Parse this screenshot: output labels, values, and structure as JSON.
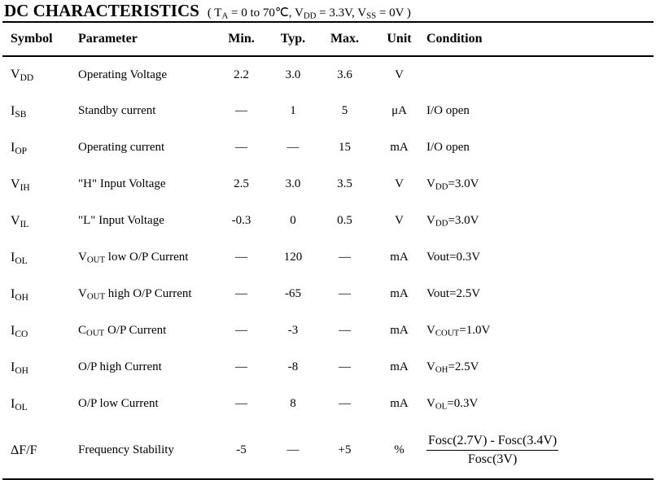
{
  "title": "DC CHARACTERISTICS",
  "condition": {
    "open": "( T",
    "ta_sub": "A",
    "ta_val": " = 0 to 70℃, V",
    "vdd_sub": "DD",
    "vdd_val": " = 3.3V, V",
    "vss_sub": "SS",
    "vss_val": " = 0V )"
  },
  "headers": [
    "Symbol",
    "Parameter",
    "Min.",
    "Typ.",
    "Max.",
    "Unit",
    "Condition"
  ],
  "rows": [
    {
      "sym": "V",
      "sub": "DD",
      "param": "Operating Voltage",
      "min": "2.2",
      "typ": "3.0",
      "max": "3.6",
      "unit": "V",
      "cond": "",
      "cond_sub": "",
      "cond_rest": ""
    },
    {
      "sym": "I",
      "sub": "SB",
      "param": "Standby current",
      "min": "—",
      "typ": "1",
      "max": "5",
      "unit": "μA",
      "cond": "I/O open",
      "cond_sub": "",
      "cond_rest": ""
    },
    {
      "sym": "I",
      "sub": "OP",
      "param": "Operating current",
      "min": "—",
      "typ": "—",
      "max": "15",
      "unit": "mA",
      "cond": "I/O open",
      "cond_sub": "",
      "cond_rest": ""
    },
    {
      "sym": "V",
      "sub": "IH",
      "param": "\"H\" Input Voltage",
      "min": "2.5",
      "typ": "3.0",
      "max": "3.5",
      "unit": "V",
      "cond": "V",
      "cond_sub": "DD",
      "cond_rest": "=3.0V"
    },
    {
      "sym": "V",
      "sub": "IL",
      "param": "\"L\" Input Voltage",
      "min": "-0.3",
      "typ": "0",
      "max": "0.5",
      "unit": "V",
      "cond": "V",
      "cond_sub": "DD",
      "cond_rest": "=3.0V"
    },
    {
      "sym": "I",
      "sub": "OL",
      "param_pre": "V",
      "param_sub": "OUT",
      "param": " low O/P Current",
      "min": "—",
      "typ": "120",
      "max": "—",
      "unit": "mA",
      "cond": "Vout=0.3V",
      "cond_sub": "",
      "cond_rest": ""
    },
    {
      "sym": "I",
      "sub": "OH",
      "param_pre": "V",
      "param_sub": "OUT",
      "param": " high O/P Current",
      "min": "—",
      "typ": "-65",
      "max": "—",
      "unit": "mA",
      "cond": "Vout=2.5V",
      "cond_sub": "",
      "cond_rest": ""
    },
    {
      "sym": "I",
      "sub": "CO",
      "param_pre": "C",
      "param_sub": "OUT",
      "param": " O/P Current",
      "min": "—",
      "typ": "-3",
      "max": "—",
      "unit": "mA",
      "cond": "V",
      "cond_sub": "COUT",
      "cond_rest": "=1.0V"
    },
    {
      "sym": "I",
      "sub": "OH",
      "param": "O/P high Current",
      "min": "—",
      "typ": "-8",
      "max": "—",
      "unit": "mA",
      "cond": "V",
      "cond_sub": "OH",
      "cond_rest": "=2.5V"
    },
    {
      "sym": "I",
      "sub": "OL",
      "param": "O/P low Current",
      "min": "—",
      "typ": "8",
      "max": "—",
      "unit": "mA",
      "cond": "V",
      "cond_sub": "OL",
      "cond_rest": "=0.3V"
    },
    {
      "sym": "ΔF/F",
      "sub": "",
      "param": "Frequency Stability",
      "min": "-5",
      "typ": "—",
      "max": "+5",
      "unit": "%",
      "cond": "",
      "cond_sub": "",
      "cond_rest": "",
      "frac_num": "Fosc(2.7V) - Fosc(3.4V)",
      "frac_den": "Fosc(3V)"
    }
  ]
}
